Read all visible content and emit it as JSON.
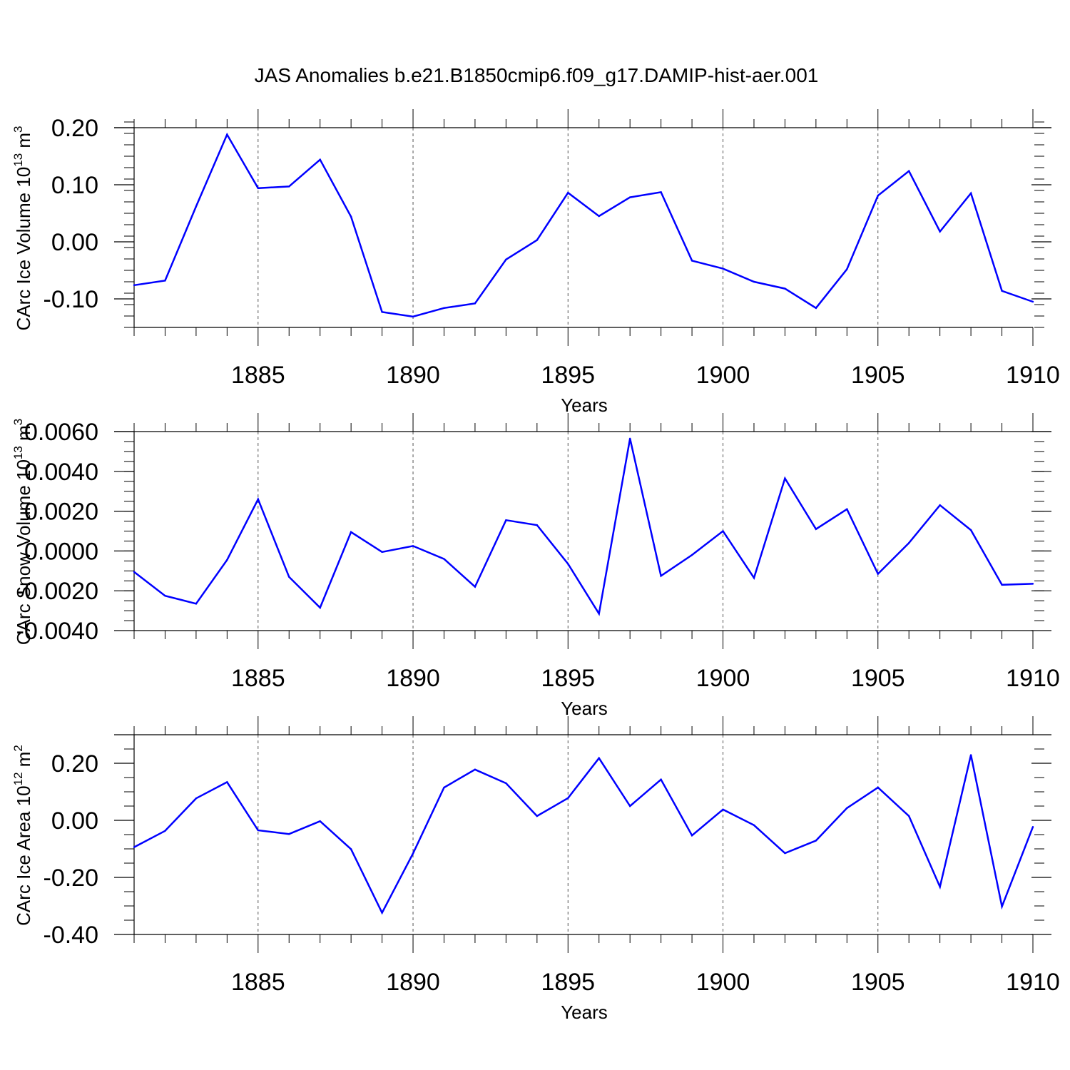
{
  "title": "JAS Anomalies b.e21.B1850cmip6.f09_g17.DAMIP-hist-aer.001",
  "colors": {
    "line": "#0000ff",
    "axis": "#000000",
    "grid": "#555555"
  },
  "chart_data": [
    {
      "type": "line",
      "ylabel": "CArc Ice Volume 10^13 m^3",
      "ylabel_parts": {
        "base": "CArc Ice Volume 10",
        "exp1": "13",
        "mid": " m",
        "exp2": "3"
      },
      "xlabel": "Years",
      "xlim": [
        1881,
        1910
      ],
      "ylim": [
        -0.15,
        0.2
      ],
      "x_ticks": [
        1885,
        1890,
        1895,
        1900,
        1905,
        1910
      ],
      "x_tick_labels": [
        "1885",
        "1890",
        "1895",
        "1900",
        "1905",
        "1910"
      ],
      "y_ticks": [
        0.2,
        0.1,
        0.0,
        -0.1
      ],
      "y_tick_labels": [
        "0.20",
        "0.10",
        "0.00",
        "-0.10"
      ],
      "y_minor_step": 0.02,
      "grid_x": [
        1885,
        1890,
        1895,
        1900,
        1905
      ],
      "x": [
        1881,
        1882,
        1883,
        1884,
        1885,
        1886,
        1887,
        1888,
        1889,
        1890,
        1891,
        1892,
        1893,
        1894,
        1895,
        1896,
        1897,
        1898,
        1899,
        1900,
        1901,
        1902,
        1903,
        1904,
        1905,
        1906,
        1907,
        1908,
        1909,
        1910
      ],
      "values": [
        -0.076,
        -0.068,
        0.062,
        0.188,
        0.094,
        0.097,
        0.144,
        0.044,
        -0.123,
        -0.131,
        -0.116,
        -0.108,
        -0.031,
        0.003,
        0.086,
        0.045,
        0.078,
        0.087,
        -0.033,
        -0.047,
        -0.07,
        -0.082,
        -0.116,
        -0.048,
        0.081,
        0.124,
        0.018,
        0.085,
        -0.086,
        -0.105
      ]
    },
    {
      "type": "line",
      "ylabel": "CArc Snow Volume 10^13 m^3",
      "ylabel_parts": {
        "base": "CArc Snow Volume 10",
        "exp1": "13",
        "mid": " m",
        "exp2": "3"
      },
      "xlabel": "Years",
      "xlim": [
        1881,
        1910
      ],
      "ylim": [
        -0.004,
        0.006
      ],
      "x_ticks": [
        1885,
        1890,
        1895,
        1900,
        1905,
        1910
      ],
      "x_tick_labels": [
        "1885",
        "1890",
        "1895",
        "1900",
        "1905",
        "1910"
      ],
      "y_ticks": [
        0.006,
        0.004,
        0.002,
        0.0,
        -0.002,
        -0.004
      ],
      "y_tick_labels": [
        "0.0060",
        "0.0040",
        "0.0020",
        "0.0000",
        "-0.0020",
        "-0.0040"
      ],
      "y_minor_step": 0.0005,
      "grid_x": [
        1885,
        1890,
        1895,
        1900,
        1905
      ],
      "x": [
        1881,
        1882,
        1883,
        1884,
        1885,
        1886,
        1887,
        1888,
        1889,
        1890,
        1891,
        1892,
        1893,
        1894,
        1895,
        1896,
        1897,
        1898,
        1899,
        1900,
        1901,
        1902,
        1903,
        1904,
        1905,
        1906,
        1907,
        1908,
        1909,
        1910
      ],
      "values": [
        -0.00105,
        -0.00225,
        -0.00265,
        -0.00045,
        0.0026,
        -0.0013,
        -0.00285,
        0.00095,
        -5e-05,
        0.00025,
        -0.0004,
        -0.0018,
        0.00155,
        0.0013,
        -0.00065,
        -0.00315,
        0.00565,
        -0.00125,
        -0.0002,
        0.001,
        -0.00135,
        0.00365,
        0.0011,
        0.0021,
        -0.00115,
        0.0004,
        0.0023,
        0.00105,
        -0.0017,
        -0.00165
      ]
    },
    {
      "type": "line",
      "ylabel": "CArc Ice Area 10^12 m^2",
      "ylabel_parts": {
        "base": "CArc Ice Area 10",
        "exp1": "12",
        "mid": " m",
        "exp2": "2"
      },
      "xlabel": "Years",
      "xlim": [
        1881,
        1910
      ],
      "ylim": [
        -0.4,
        0.3
      ],
      "x_ticks": [
        1885,
        1890,
        1895,
        1900,
        1905,
        1910
      ],
      "x_tick_labels": [
        "1885",
        "1890",
        "1895",
        "1900",
        "1905",
        "1910"
      ],
      "y_ticks": [
        0.2,
        0.0,
        -0.2,
        -0.4
      ],
      "y_tick_labels": [
        "0.20",
        "0.00",
        "-0.20",
        "-0.40"
      ],
      "y_minor_step": 0.05,
      "grid_x": [
        1885,
        1890,
        1895,
        1900,
        1905
      ],
      "x": [
        1881,
        1882,
        1883,
        1884,
        1885,
        1886,
        1887,
        1888,
        1889,
        1890,
        1891,
        1892,
        1893,
        1894,
        1895,
        1896,
        1897,
        1898,
        1899,
        1900,
        1901,
        1902,
        1903,
        1904,
        1905,
        1906,
        1907,
        1908,
        1909,
        1910
      ],
      "values": [
        -0.094,
        -0.037,
        0.077,
        0.134,
        -0.035,
        -0.048,
        -0.003,
        -0.101,
        -0.324,
        -0.116,
        0.115,
        0.178,
        0.13,
        0.015,
        0.078,
        0.218,
        0.05,
        0.143,
        -0.053,
        0.038,
        -0.017,
        -0.115,
        -0.071,
        0.043,
        0.115,
        0.015,
        -0.233,
        0.229,
        -0.302,
        -0.023
      ]
    }
  ]
}
